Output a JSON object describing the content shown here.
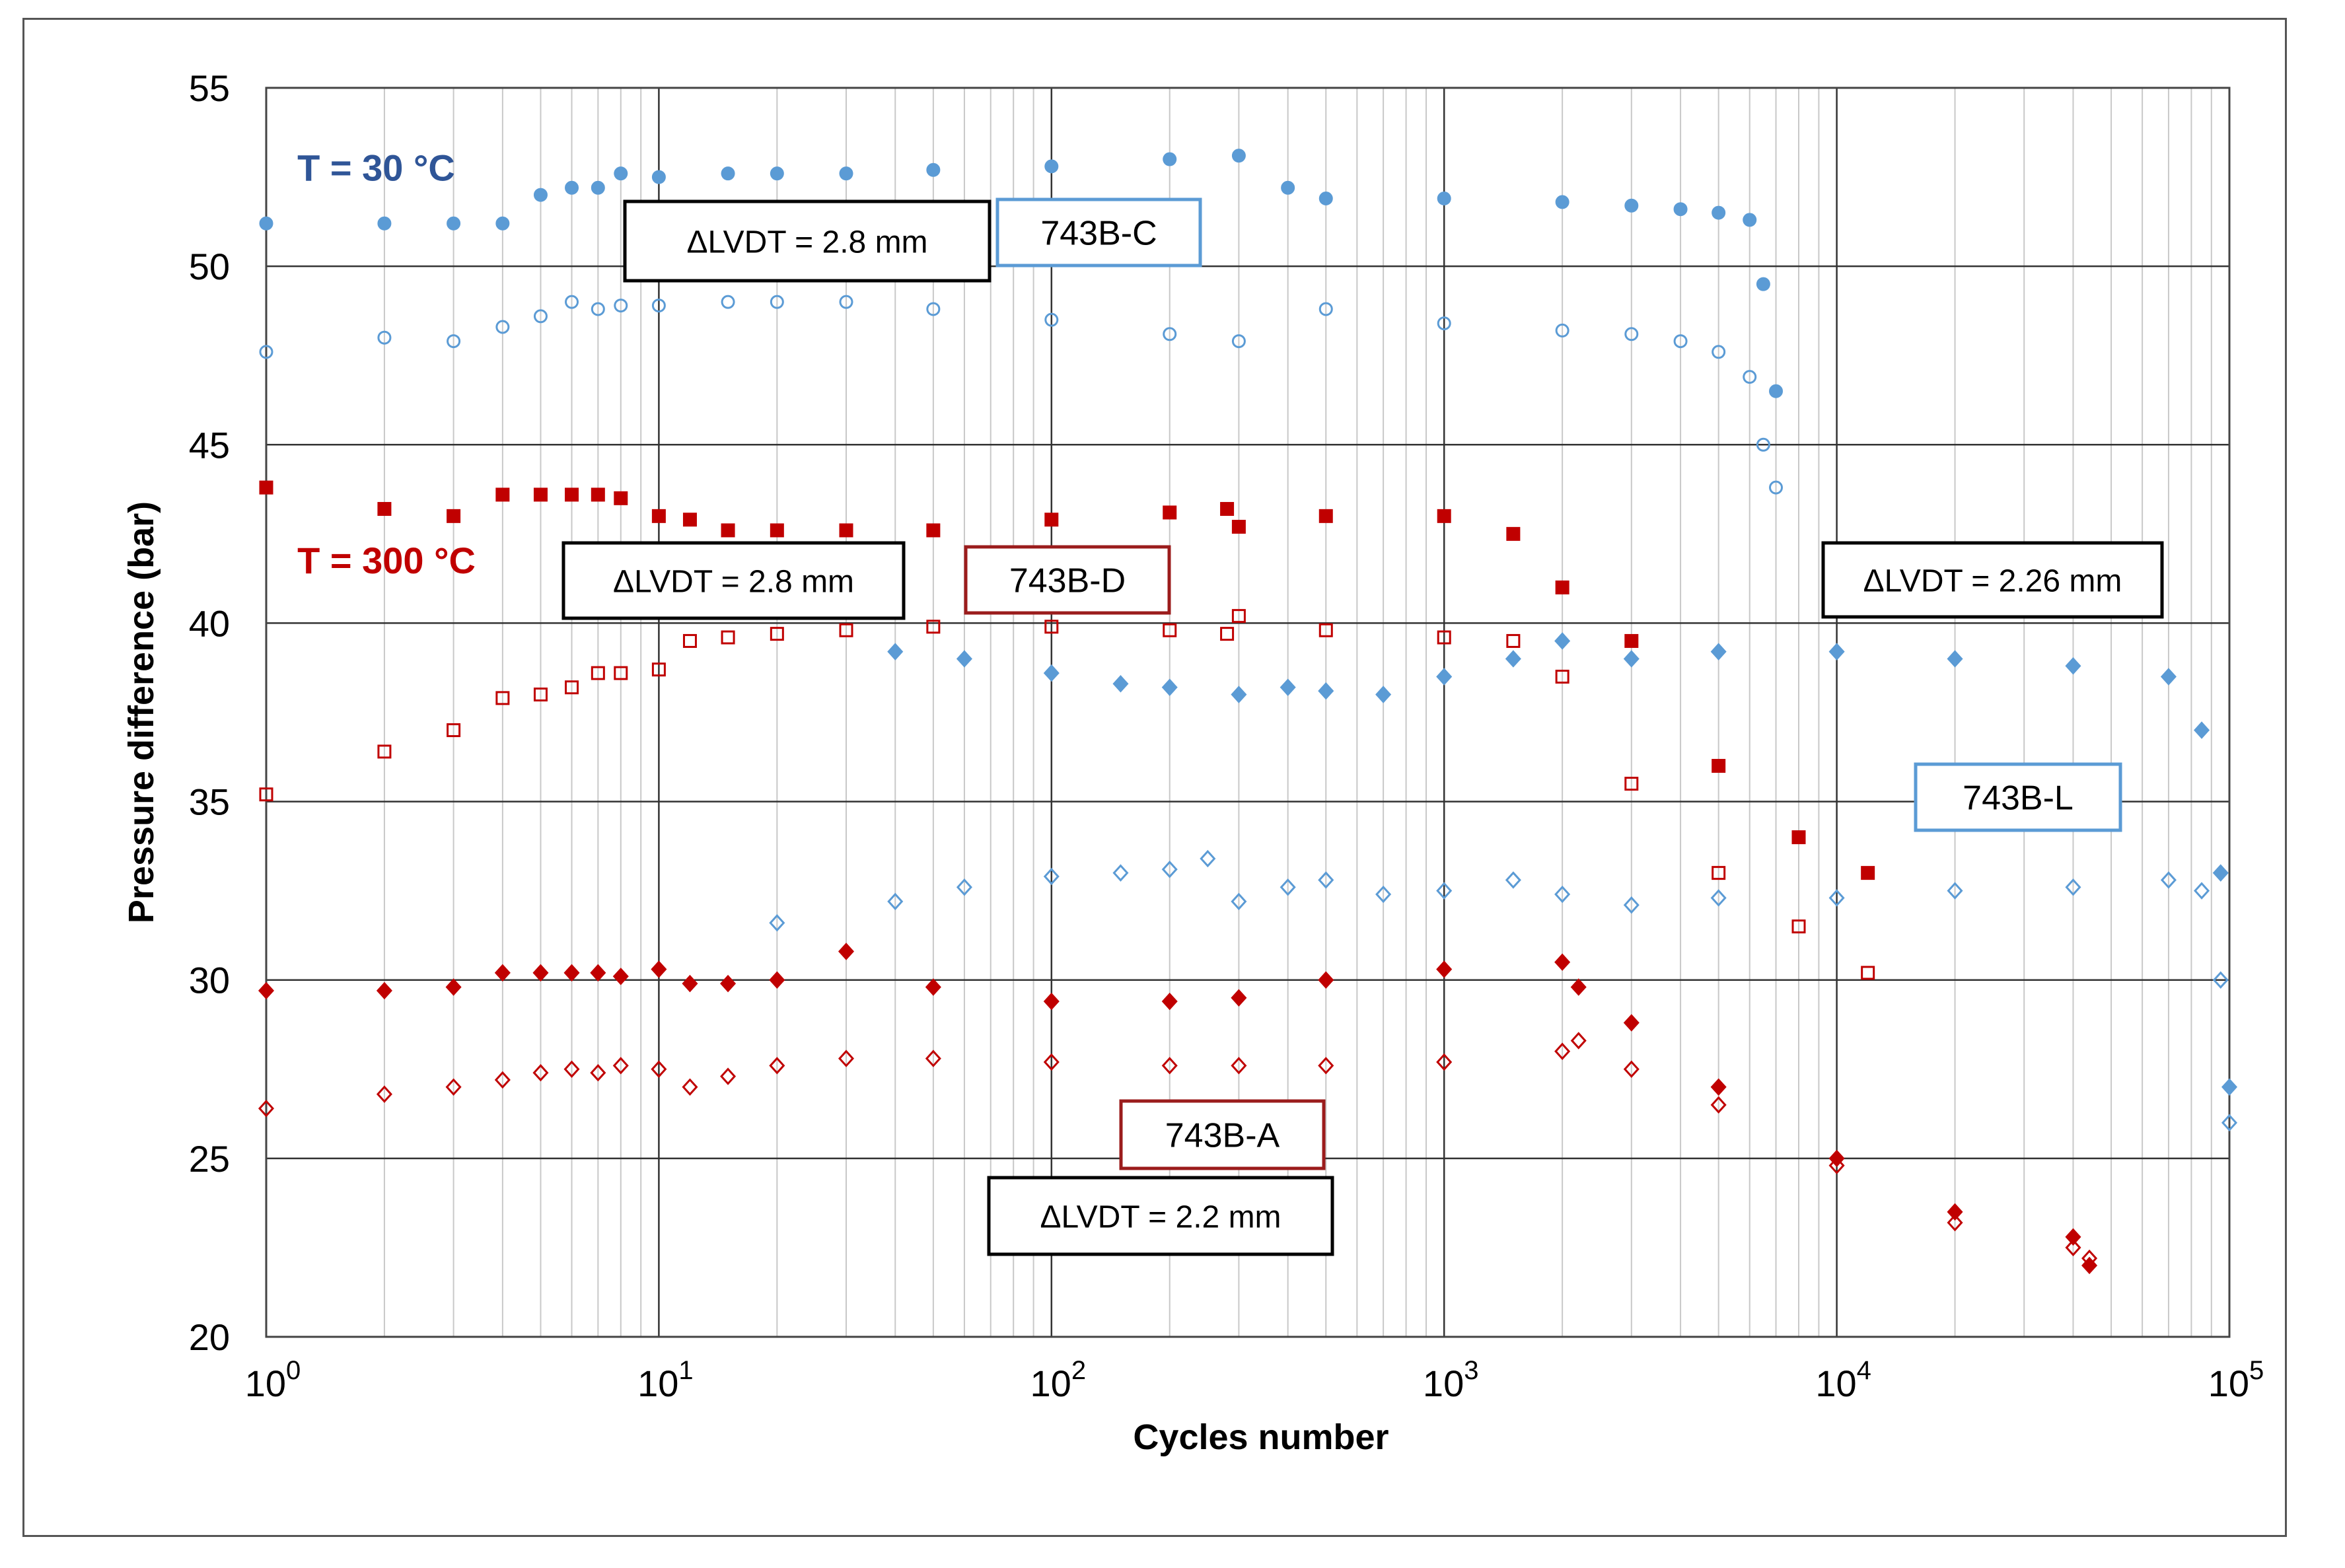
{
  "chart_data": {
    "type": "scatter",
    "title": "",
    "xlabel": "Cycles number",
    "ylabel": "Pressure difference (bar)",
    "x_scale": "log",
    "xlim": [
      1,
      100000
    ],
    "ylim": [
      20,
      55
    ],
    "grid": true,
    "x_ticks": [
      {
        "value": 1,
        "base": "10",
        "exp": "0"
      },
      {
        "value": 10,
        "base": "10",
        "exp": "1"
      },
      {
        "value": 100,
        "base": "10",
        "exp": "2"
      },
      {
        "value": 1000,
        "base": "10",
        "exp": "3"
      },
      {
        "value": 10000,
        "base": "10",
        "exp": "4"
      },
      {
        "value": 100000,
        "base": "10",
        "exp": "5"
      }
    ],
    "y_ticks": [
      {
        "value": 20,
        "label": "20"
      },
      {
        "value": 25,
        "label": "25"
      },
      {
        "value": 30,
        "label": "30"
      },
      {
        "value": 35,
        "label": "35"
      },
      {
        "value": 40,
        "label": "40"
      },
      {
        "value": 45,
        "label": "45"
      },
      {
        "value": 50,
        "label": "50"
      },
      {
        "value": 55,
        "label": "55"
      }
    ],
    "series": [
      {
        "name": "743B-C max",
        "specimen": "743B-C",
        "temperature": "T = 30 °C",
        "color": "#5b9bd5",
        "marker": "circle",
        "filled": true,
        "x": [
          1,
          2,
          3,
          4,
          5,
          6,
          7,
          8,
          10,
          15,
          20,
          30,
          50,
          100,
          200,
          300,
          400,
          500,
          1000,
          2000,
          3000,
          4000,
          5000,
          6000,
          6500,
          7000
        ],
        "y": [
          51.2,
          51.2,
          51.2,
          51.2,
          52.0,
          52.2,
          52.2,
          52.6,
          52.5,
          52.6,
          52.6,
          52.6,
          52.7,
          52.8,
          53.0,
          53.1,
          52.2,
          51.9,
          51.9,
          51.8,
          51.7,
          51.6,
          51.5,
          51.3,
          49.5,
          46.5
        ]
      },
      {
        "name": "743B-C min",
        "specimen": "743B-C",
        "temperature": "T = 30 °C",
        "color": "#5b9bd5",
        "marker": "circle",
        "filled": false,
        "x": [
          1,
          2,
          3,
          4,
          5,
          6,
          7,
          8,
          10,
          15,
          20,
          30,
          50,
          100,
          200,
          300,
          500,
          1000,
          2000,
          3000,
          4000,
          5000,
          6000,
          6500,
          7000
        ],
        "y": [
          47.6,
          48.0,
          47.9,
          48.3,
          48.6,
          49.0,
          48.8,
          48.9,
          48.9,
          49.0,
          49.0,
          49.0,
          48.8,
          48.5,
          48.1,
          47.9,
          48.8,
          48.4,
          48.2,
          48.1,
          47.9,
          47.6,
          46.9,
          45.0,
          43.8
        ]
      },
      {
        "name": "743B-D max",
        "specimen": "743B-D",
        "temperature": "T = 300 °C",
        "color": "#c00000",
        "marker": "square",
        "filled": true,
        "x": [
          1,
          2,
          3,
          4,
          5,
          6,
          7,
          8,
          10,
          12,
          15,
          20,
          30,
          50,
          100,
          200,
          280,
          300,
          500,
          1000,
          1500,
          2000,
          3000,
          5000,
          8000,
          12000
        ],
        "y": [
          43.8,
          43.2,
          43.0,
          43.6,
          43.6,
          43.6,
          43.6,
          43.5,
          43.0,
          42.9,
          42.6,
          42.6,
          42.6,
          42.6,
          42.9,
          43.1,
          43.2,
          42.7,
          43.0,
          43.0,
          42.5,
          41.0,
          39.5,
          36.0,
          34.0,
          33.0
        ]
      },
      {
        "name": "743B-D min",
        "specimen": "743B-D",
        "temperature": "T = 300 °C",
        "color": "#c00000",
        "marker": "square",
        "filled": false,
        "x": [
          1,
          2,
          3,
          4,
          5,
          6,
          7,
          8,
          10,
          12,
          15,
          20,
          30,
          50,
          100,
          200,
          280,
          300,
          500,
          1000,
          1500,
          2000,
          3000,
          5000,
          8000,
          12000
        ],
        "y": [
          35.2,
          36.4,
          37.0,
          37.9,
          38.0,
          38.2,
          38.6,
          38.6,
          38.7,
          39.5,
          39.6,
          39.7,
          39.8,
          39.9,
          39.9,
          39.8,
          39.7,
          40.2,
          39.8,
          39.6,
          39.5,
          38.5,
          35.5,
          33.0,
          31.5,
          30.2
        ]
      },
      {
        "name": "743B-L max",
        "specimen": "743B-L",
        "temperature": "T = 30 °C",
        "color": "#5b9bd5",
        "marker": "diamond",
        "filled": true,
        "x": [
          40,
          60,
          100,
          150,
          200,
          300,
          400,
          500,
          700,
          1000,
          1500,
          2000,
          3000,
          5000,
          10000,
          20000,
          40000,
          70000,
          85000,
          95000,
          100000
        ],
        "y": [
          39.2,
          39.0,
          38.6,
          38.3,
          38.2,
          38.0,
          38.2,
          38.1,
          38.0,
          38.5,
          39.0,
          39.5,
          39.0,
          39.2,
          39.2,
          39.0,
          38.8,
          38.5,
          37.0,
          33.0,
          27.0
        ]
      },
      {
        "name": "743B-L min",
        "specimen": "743B-L",
        "temperature": "T = 30 °C",
        "color": "#5b9bd5",
        "marker": "diamond",
        "filled": false,
        "x": [
          20,
          40,
          60,
          100,
          150,
          200,
          250,
          300,
          400,
          500,
          700,
          1000,
          1500,
          2000,
          3000,
          5000,
          10000,
          20000,
          40000,
          70000,
          85000,
          95000,
          100000
        ],
        "y": [
          31.6,
          32.2,
          32.6,
          32.9,
          33.0,
          33.1,
          33.4,
          32.2,
          32.6,
          32.8,
          32.4,
          32.5,
          32.8,
          32.4,
          32.1,
          32.3,
          32.3,
          32.5,
          32.6,
          32.8,
          32.5,
          30.0,
          26.0
        ]
      },
      {
        "name": "743B-A max",
        "specimen": "743B-A",
        "temperature": "T = 300 °C",
        "color": "#c00000",
        "marker": "diamond",
        "filled": true,
        "x": [
          1,
          2,
          3,
          4,
          5,
          6,
          7,
          8,
          10,
          12,
          15,
          20,
          30,
          50,
          100,
          200,
          300,
          500,
          1000,
          2000,
          2200,
          3000,
          5000,
          10000,
          20000,
          40000,
          44000
        ],
        "y": [
          29.7,
          29.7,
          29.8,
          30.2,
          30.2,
          30.2,
          30.2,
          30.1,
          30.3,
          29.9,
          29.9,
          30.0,
          30.8,
          29.8,
          29.4,
          29.4,
          29.5,
          30.0,
          30.3,
          30.5,
          29.8,
          28.8,
          27.0,
          25.0,
          23.5,
          22.8,
          22.0
        ]
      },
      {
        "name": "743B-A min",
        "specimen": "743B-A",
        "temperature": "T = 300 °C",
        "color": "#c00000",
        "marker": "diamond",
        "filled": false,
        "x": [
          1,
          2,
          3,
          4,
          5,
          6,
          7,
          8,
          10,
          12,
          15,
          20,
          30,
          50,
          100,
          200,
          300,
          500,
          1000,
          2000,
          2200,
          3000,
          5000,
          10000,
          20000,
          40000,
          44000
        ],
        "y": [
          26.4,
          26.8,
          27.0,
          27.2,
          27.4,
          27.5,
          27.4,
          27.6,
          27.5,
          27.0,
          27.3,
          27.6,
          27.8,
          27.8,
          27.7,
          27.6,
          27.6,
          27.6,
          27.7,
          28.0,
          28.3,
          27.5,
          26.5,
          24.8,
          23.2,
          22.5,
          22.2
        ]
      }
    ],
    "annotations": [
      {
        "id": "t30",
        "text": "T = 30 °C",
        "x": 1.2,
        "y": 52.4,
        "color": "#2f5597",
        "style": "text"
      },
      {
        "id": "t300",
        "text": "T = 300 °C",
        "x": 1.2,
        "y": 41.4,
        "color": "#c00000",
        "style": "text"
      },
      {
        "id": "dlvdt_c",
        "text": "ΔLVDT = 2.8 mm",
        "style": "box",
        "box_color": "#000000",
        "text_color": "#000000"
      },
      {
        "id": "lbl_c",
        "text": "743B-C",
        "style": "box",
        "box_color": "#5b9bd5",
        "text_color": "#000000"
      },
      {
        "id": "dlvdt_d",
        "text": "ΔLVDT = 2.8 mm",
        "style": "box",
        "box_color": "#000000",
        "text_color": "#000000"
      },
      {
        "id": "lbl_d",
        "text": "743B-D",
        "style": "box",
        "box_color": "#9b1c1c",
        "text_color": "#000000"
      },
      {
        "id": "dlvdt_l",
        "text": "ΔLVDT = 2.26 mm",
        "style": "box",
        "box_color": "#000000",
        "text_color": "#000000"
      },
      {
        "id": "lbl_l",
        "text": "743B-L",
        "style": "box",
        "box_color": "#5b9bd5",
        "text_color": "#000000"
      },
      {
        "id": "lbl_a",
        "text": "743B-A",
        "style": "box",
        "box_color": "#9b1c1c",
        "text_color": "#000000"
      },
      {
        "id": "dlvdt_a",
        "text": "ΔLVDT = 2.2 mm",
        "style": "box",
        "box_color": "#000000",
        "text_color": "#000000"
      }
    ]
  }
}
